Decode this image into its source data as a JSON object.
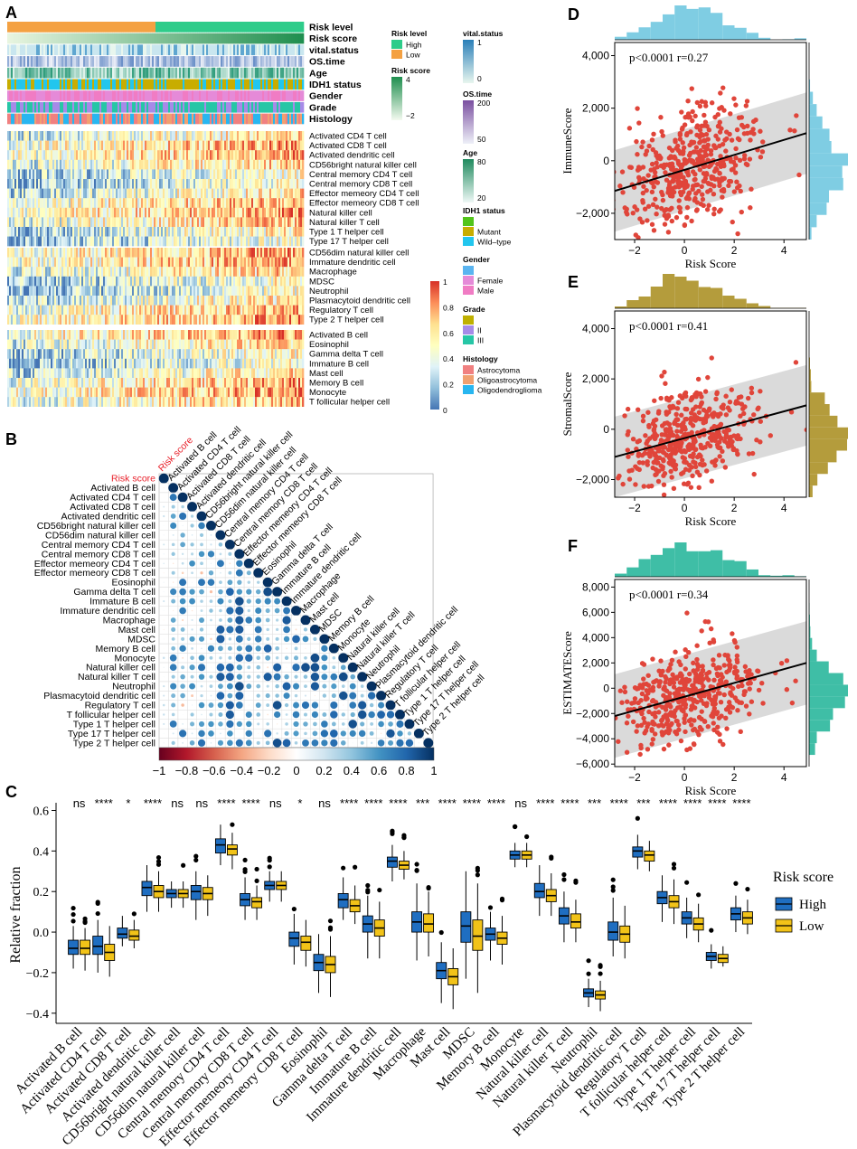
{
  "panel_letters": {
    "a": "A",
    "b": "B",
    "c": "C",
    "d": "D",
    "e": "E",
    "f": "F"
  },
  "chart_data": [
    {
      "id": "A",
      "type": "heatmap",
      "annotation_rows": [
        "Risk level",
        "Risk score",
        "vital.status",
        "OS.time",
        "Age",
        "IDH1 status",
        "Gender",
        "Grade",
        "Histology"
      ],
      "cell_groups": [
        [
          "Activated CD4 T cell",
          "Activated CD8 T cell",
          "Activated dendritic cell",
          "CD56bright natural killer cell",
          "Central memory CD4 T cell",
          "Central memory CD8 T cell",
          "Effector memeory CD4 T cell",
          "Effector memeory CD8 T cell",
          "Natural killer cell",
          "Natural killer T cell",
          "Type 1 T helper cell",
          "Type 17 T helper cell"
        ],
        [
          "CD56dim natural killer cell",
          "Immature dendritic cell",
          "Macrophage",
          "MDSC",
          "Neutrophil",
          "Plasmacytoid dendritic cell",
          "Regulatory T cell",
          "Type 2 T helper cell"
        ],
        [
          "Activated B cell",
          "Eosinophil",
          "Gamma delta T cell",
          "Immature  B cell",
          "Mast cell",
          "Memory B cell",
          "Monocyte",
          "T follicular helper cell"
        ]
      ],
      "colorbar": {
        "ticks": [
          "1",
          "0.8",
          "0.6",
          "0.4",
          "0.2",
          "0"
        ],
        "colors": [
          "#d73027",
          "#fc8d59",
          "#fee090",
          "#ffffbf",
          "#e0f3f8",
          "#91bfdb",
          "#4575b4"
        ]
      },
      "legends_left": [
        {
          "title": "Risk level",
          "items": [
            {
              "label": "High",
              "color": "#2ecc8a"
            },
            {
              "label": "Low",
              "color": "#f4a142"
            }
          ]
        },
        {
          "title": "Risk score",
          "gradient": [
            "#1e8e4e",
            "#f4faf0"
          ],
          "ticks": [
            "4",
            "",
            "−2"
          ]
        }
      ],
      "legends_right": [
        {
          "title": "vital.status",
          "gradient": [
            "#2a7fb8",
            "#e8f6ee"
          ],
          "ticks": [
            "1",
            "",
            "0"
          ]
        },
        {
          "title": "OS.time",
          "gradient": [
            "#7a4fa0",
            "#eef0f8"
          ],
          "ticks": [
            "200",
            "",
            "50"
          ]
        },
        {
          "title": "Age",
          "gradient": [
            "#1f8a5e",
            "#eef8f6"
          ],
          "ticks": [
            "80",
            "",
            "20"
          ]
        },
        {
          "title": "IDH1 status",
          "items": [
            {
              "label": "Mutant",
              "color": "#c8ad00"
            },
            {
              "label": "Wild–type",
              "color": "#22c6ee"
            }
          ],
          "top": {
            "label": "",
            "color": "#52c41a"
          }
        },
        {
          "title": "Gender",
          "items": [
            {
              "label": "Female",
              "color": "#e58ad8"
            },
            {
              "label": "Male",
              "color": "#f07cc4"
            }
          ],
          "top": {
            "label": "",
            "color": "#5ab4f0"
          }
        },
        {
          "title": "Grade",
          "items": [
            {
              "label": "II",
              "color": "#a68ae8"
            },
            {
              "label": "III",
              "color": "#26c6a6"
            }
          ],
          "top": {
            "label": "",
            "color": "#bfb000"
          }
        },
        {
          "title": "Histology",
          "items": [
            {
              "label": "Astrocytoma",
              "color": "#f08080"
            },
            {
              "label": "Oligoastrocytoma",
              "color": "#f0a070"
            },
            {
              "label": "Oligodendroglioma",
              "color": "#28b6f0"
            }
          ]
        }
      ]
    },
    {
      "id": "B",
      "type": "correlogram",
      "labels": [
        "Risk score",
        "Activated B cell",
        "Activated CD4 T cell",
        "Activated CD8 T cell",
        "Activated dendritic cell",
        "CD56bright natural killer cell",
        "CD56dim natural killer cell",
        "Central memory CD4 T cell",
        "Central memory CD8 T cell",
        "Effector memeory CD4 T cell",
        "Effector memeory CD8 T cell",
        "Eosinophil",
        "Gamma delta T cell",
        "Immature  B cell",
        "Immature dendritic cell",
        "Macrophage",
        "Mast cell",
        "MDSC",
        "Memory B cell",
        "Monocyte",
        "Natural killer cell",
        "Natural killer T cell",
        "Neutrophil",
        "Plasmacytoid dendritic cell",
        "Regulatory T cell",
        "T follicular helper cell",
        "Type 1 T helper cell",
        "Type 17 T helper cell",
        "Type 2 T helper cell"
      ],
      "highlight_color": "#e8202a",
      "colorbar_ticks": [
        "−1",
        "−0.8",
        "−0.6",
        "−0.4",
        "−0.2",
        "0",
        "0.2",
        "0.4",
        "0.6",
        "0.8",
        "1"
      ],
      "colorbar_range": [
        -1,
        1
      ]
    },
    {
      "id": "C",
      "type": "boxplot",
      "ylabel": "Relative fraction",
      "ylim": [
        -0.45,
        0.62
      ],
      "yticks": [
        "−0.4",
        "−0.2",
        "0.0",
        "0.2",
        "0.4",
        "0.6"
      ],
      "legend_title": "Risk score",
      "series": [
        {
          "name": "High",
          "color": "#1f6ec1"
        },
        {
          "name": "Low",
          "color": "#f2c318"
        }
      ],
      "categories": [
        "Activated B cell",
        "Activated CD4 T cell",
        "Activated CD8 T cell",
        "Activated dendritic cell",
        "CD56bright natural killer cell",
        "CD56dim natural killer cell",
        "Central memory CD4 T cell",
        "Central memory CD8 T cell",
        "Effector memeory CD4 T cell",
        "Effector memeory CD8 T cell",
        "Eosinophil",
        "Gamma delta T cell",
        "Immature  B cell",
        "Immature dendritic cell",
        "Macrophage",
        "Mast cell",
        "MDSC",
        "Memory B cell",
        "Monocyte",
        "Natural killer cell",
        "Natural killer T cell",
        "Neutrophil",
        "Plasmacytoid dendritic cell",
        "Regulatory T cell",
        "T follicular helper cell",
        "Type 1 T helper cell",
        "Type 17 T helper cell",
        "Type 2 T helper cell"
      ],
      "significance": [
        "ns",
        "****",
        "*",
        "****",
        "ns",
        "ns",
        "****",
        "****",
        "ns",
        "*",
        "ns",
        "****",
        "****",
        "****",
        "***",
        "****",
        "****",
        "****",
        "ns",
        "****",
        "****",
        "***",
        "****",
        "***",
        "****",
        "****",
        "****",
        "****"
      ],
      "high_boxes": [
        [
          -0.18,
          -0.11,
          -0.08,
          -0.04,
          0.03
        ],
        [
          -0.2,
          -0.11,
          -0.07,
          -0.02,
          0.06
        ],
        [
          -0.07,
          -0.03,
          -0.01,
          0.02,
          0.08
        ],
        [
          0.1,
          0.18,
          0.22,
          0.25,
          0.33
        ],
        [
          0.12,
          0.17,
          0.19,
          0.21,
          0.25
        ],
        [
          0.06,
          0.16,
          0.2,
          0.23,
          0.3
        ],
        [
          0.33,
          0.39,
          0.43,
          0.46,
          0.53
        ],
        [
          0.06,
          0.13,
          0.16,
          0.19,
          0.27
        ],
        [
          0.15,
          0.21,
          0.23,
          0.25,
          0.3
        ],
        [
          -0.16,
          -0.07,
          -0.03,
          0.0,
          0.09
        ],
        [
          -0.3,
          -0.19,
          -0.15,
          -0.11,
          -0.01
        ],
        [
          0.06,
          0.12,
          0.16,
          0.19,
          0.27
        ],
        [
          -0.13,
          0.0,
          0.04,
          0.08,
          0.18
        ],
        [
          0.25,
          0.32,
          0.35,
          0.37,
          0.43
        ],
        [
          -0.14,
          0.0,
          0.05,
          0.1,
          0.24
        ],
        [
          -0.35,
          -0.23,
          -0.19,
          -0.15,
          -0.05
        ],
        [
          -0.23,
          -0.05,
          0.03,
          0.1,
          0.3
        ],
        [
          -0.14,
          -0.04,
          -0.01,
          0.02,
          0.1
        ],
        [
          0.32,
          0.36,
          0.38,
          0.4,
          0.44
        ],
        [
          0.08,
          0.17,
          0.2,
          0.24,
          0.33
        ],
        [
          -0.05,
          0.04,
          0.08,
          0.12,
          0.2
        ],
        [
          -0.37,
          -0.32,
          -0.3,
          -0.28,
          -0.23
        ],
        [
          -0.12,
          -0.04,
          0.0,
          0.05,
          0.17
        ],
        [
          0.31,
          0.37,
          0.4,
          0.42,
          0.48
        ],
        [
          0.05,
          0.14,
          0.17,
          0.2,
          0.28
        ],
        [
          -0.03,
          0.04,
          0.07,
          0.1,
          0.17
        ],
        [
          -0.18,
          -0.14,
          -0.12,
          -0.1,
          -0.06
        ],
        [
          0.0,
          0.06,
          0.09,
          0.12,
          0.18
        ]
      ],
      "low_boxes": [
        [
          -0.19,
          -0.11,
          -0.08,
          -0.04,
          0.02
        ],
        [
          -0.22,
          -0.14,
          -0.1,
          -0.06,
          0.03
        ],
        [
          -0.08,
          -0.04,
          -0.02,
          0.01,
          0.06
        ],
        [
          0.1,
          0.17,
          0.2,
          0.23,
          0.3
        ],
        [
          0.12,
          0.17,
          0.19,
          0.21,
          0.25
        ],
        [
          0.08,
          0.16,
          0.19,
          0.22,
          0.28
        ],
        [
          0.31,
          0.38,
          0.41,
          0.43,
          0.49
        ],
        [
          0.06,
          0.12,
          0.15,
          0.17,
          0.23
        ],
        [
          0.15,
          0.21,
          0.23,
          0.25,
          0.3
        ],
        [
          -0.17,
          -0.09,
          -0.05,
          -0.02,
          0.06
        ],
        [
          -0.32,
          -0.2,
          -0.16,
          -0.12,
          -0.02
        ],
        [
          0.04,
          0.1,
          0.13,
          0.16,
          0.23
        ],
        [
          -0.13,
          -0.02,
          0.02,
          0.06,
          0.15
        ],
        [
          0.26,
          0.31,
          0.33,
          0.35,
          0.4
        ],
        [
          -0.12,
          0.0,
          0.04,
          0.09,
          0.2
        ],
        [
          -0.38,
          -0.26,
          -0.22,
          -0.18,
          -0.08
        ],
        [
          -0.3,
          -0.09,
          -0.02,
          0.06,
          0.24
        ],
        [
          -0.16,
          -0.06,
          -0.03,
          0.0,
          0.08
        ],
        [
          0.32,
          0.36,
          0.38,
          0.4,
          0.44
        ],
        [
          0.08,
          0.15,
          0.18,
          0.21,
          0.29
        ],
        [
          -0.05,
          0.02,
          0.05,
          0.09,
          0.16
        ],
        [
          -0.39,
          -0.33,
          -0.31,
          -0.29,
          -0.24
        ],
        [
          -0.13,
          -0.05,
          -0.01,
          0.03,
          0.13
        ],
        [
          0.3,
          0.35,
          0.38,
          0.4,
          0.45
        ],
        [
          0.04,
          0.12,
          0.15,
          0.18,
          0.26
        ],
        [
          -0.05,
          0.01,
          0.04,
          0.07,
          0.14
        ],
        [
          -0.17,
          -0.15,
          -0.13,
          -0.11,
          -0.07
        ],
        [
          -0.01,
          0.04,
          0.07,
          0.1,
          0.16
        ]
      ]
    },
    {
      "id": "D",
      "type": "scatter",
      "xlabel": "Risk Score",
      "ylabel": "ImmuneScore",
      "annotation": "p<0.0001  r=0.27",
      "xlim": [
        -2.8,
        4.9
      ],
      "ylim": [
        -3000,
        4500
      ],
      "xticks": [
        -2,
        0,
        2,
        4
      ],
      "yticks": [
        -2000,
        0,
        2000,
        4000
      ],
      "ytick_labels": [
        "−2,000",
        "0",
        "2,000",
        "4,000"
      ],
      "xtick_labels": [
        "−2",
        "0",
        "2",
        "4"
      ],
      "fit_line": [
        [
          -2.8,
          -1150
        ],
        [
          4.9,
          1050
        ]
      ],
      "band_halfwidth": 1550,
      "point_color": "#e0453a",
      "hist_color": "#7fcde3",
      "n_points": 470,
      "x_center": 0.1,
      "x_spread": 1.25,
      "y_spread": 1050
    },
    {
      "id": "E",
      "type": "scatter",
      "xlabel": "Risk Score",
      "ylabel": "StromalScore",
      "annotation": "p<0.0001  r=0.41",
      "xlim": [
        -2.8,
        4.9
      ],
      "ylim": [
        -2700,
        4700
      ],
      "xticks": [
        -2,
        0,
        2,
        4
      ],
      "yticks": [
        -2000,
        0,
        2000,
        4000
      ],
      "ytick_labels": [
        "−2,000",
        "0",
        "2,000",
        "4,000"
      ],
      "xtick_labels": [
        "−2",
        "0",
        "2",
        "4"
      ],
      "fit_line": [
        [
          -2.8,
          -1100
        ],
        [
          4.9,
          950
        ]
      ],
      "band_halfwidth": 1600,
      "point_color": "#e0453a",
      "hist_color": "#b49c3c",
      "n_points": 470,
      "x_center": 0.1,
      "x_spread": 1.25,
      "y_spread": 900
    },
    {
      "id": "F",
      "type": "scatter",
      "xlabel": "Risk Score",
      "ylabel": "ESTIMATEScore",
      "annotation": "p<0.0001  r=0.34",
      "xlim": [
        -2.8,
        4.9
      ],
      "ylim": [
        -6200,
        8600
      ],
      "xticks": [
        -2,
        0,
        2,
        4
      ],
      "yticks": [
        -6000,
        -4000,
        -2000,
        0,
        2000,
        4000,
        6000,
        8000
      ],
      "ytick_labels": [
        "−6,000",
        "−4,000",
        "−2,000",
        "0",
        "2,000",
        "4,000",
        "6,000",
        "8,000"
      ],
      "xtick_labels": [
        "−2",
        "0",
        "2",
        "4"
      ],
      "fit_line": [
        [
          -2.8,
          -2200
        ],
        [
          4.9,
          2000
        ]
      ],
      "band_halfwidth": 3300,
      "point_color": "#e0453a",
      "hist_color": "#3fbea6",
      "n_points": 470,
      "x_center": 0.1,
      "x_spread": 1.25,
      "y_spread": 1800
    }
  ]
}
